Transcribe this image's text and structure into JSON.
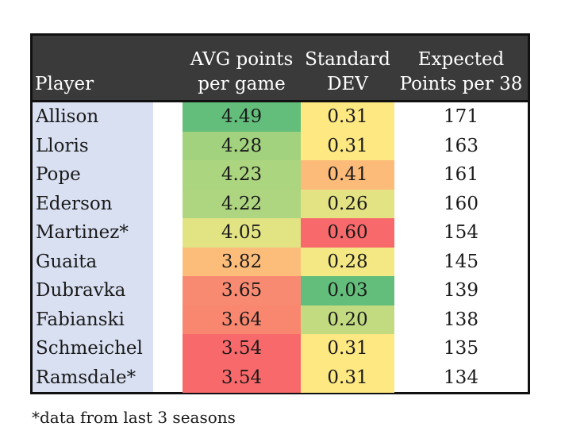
{
  "chart_data": {
    "type": "table",
    "columns": [
      {
        "key": "player",
        "lines": [
          "Player"
        ]
      },
      {
        "key": "avg",
        "lines": [
          "AVG points",
          "per game"
        ]
      },
      {
        "key": "std",
        "lines": [
          "Standard",
          "DEV"
        ]
      },
      {
        "key": "exp",
        "lines": [
          "Expected",
          "Points per 38"
        ]
      }
    ],
    "rows": [
      {
        "player": "Allison",
        "avg": "4.49",
        "std": "0.31",
        "exp": "171",
        "avg_color": "#63be7b",
        "std_color": "#fde882"
      },
      {
        "player": "Lloris",
        "avg": "4.28",
        "std": "0.31",
        "exp": "163",
        "avg_color": "#a3d27e",
        "std_color": "#fde882"
      },
      {
        "player": "Pope",
        "avg": "4.23",
        "std": "0.41",
        "exp": "161",
        "avg_color": "#acd57f",
        "std_color": "#fcbb79"
      },
      {
        "player": "Ederson",
        "avg": "4.22",
        "std": "0.26",
        "exp": "160",
        "avg_color": "#aed580",
        "std_color": "#e4e384"
      },
      {
        "player": "Martinez*",
        "avg": "4.05",
        "std": "0.60",
        "exp": "154",
        "avg_color": "#e2e383",
        "std_color": "#f8696b"
      },
      {
        "player": "Guaita",
        "avg": "3.82",
        "std": "0.28",
        "exp": "145",
        "avg_color": "#fcbd7b",
        "std_color": "#f3e883"
      },
      {
        "player": "Dubravka",
        "avg": "3.65",
        "std": "0.03",
        "exp": "139",
        "avg_color": "#f98a72",
        "std_color": "#63be7b"
      },
      {
        "player": "Fabianski",
        "avg": "3.64",
        "std": "0.20",
        "exp": "138",
        "avg_color": "#f98770",
        "std_color": "#c2db81"
      },
      {
        "player": "Schmeichel",
        "avg": "3.54",
        "std": "0.31",
        "exp": "135",
        "avg_color": "#f8696b",
        "std_color": "#fde882"
      },
      {
        "player": "Ramsdale*",
        "avg": "3.54",
        "std": "0.31",
        "exp": "134",
        "avg_color": "#f8696b",
        "std_color": "#fde882"
      }
    ],
    "colors": {
      "header_bg": "#3a3a3a",
      "header_text": "#ffffff",
      "player_col_bg": "#d9e0f2",
      "border": "#111111"
    }
  },
  "footnote": "*data from last 3 seasons"
}
